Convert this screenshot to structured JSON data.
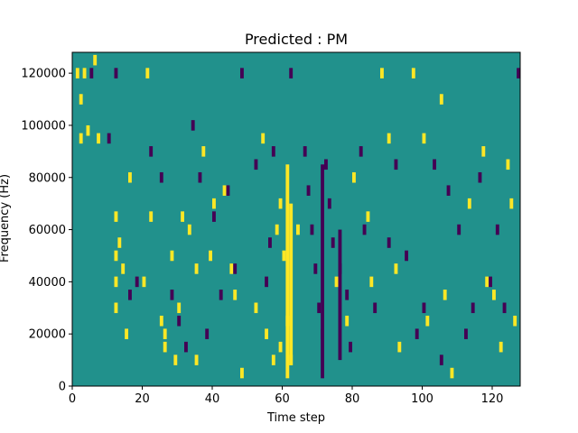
{
  "chart_data": {
    "type": "heatmap",
    "title": "Predicted : PM",
    "xlabel": "Time step",
    "ylabel": "Frequency (Hz)",
    "xlim": [
      0,
      128
    ],
    "ylim": [
      0,
      128000
    ],
    "x_ticks": [
      0,
      20,
      40,
      60,
      80,
      100,
      120
    ],
    "y_ticks": [
      0,
      20000,
      40000,
      60000,
      80000,
      100000,
      120000
    ],
    "colors": {
      "background": "#21918c",
      "positive": "#fde725",
      "negative": "#440154"
    },
    "grid": false,
    "legend": "none",
    "value_levels": {
      "negative": -1,
      "zero": 0,
      "positive": 1
    },
    "cells": [
      [
        1,
        120000,
        1
      ],
      [
        3,
        120000,
        1
      ],
      [
        2,
        110000,
        1
      ],
      [
        4,
        98000,
        1
      ],
      [
        2,
        95000,
        1
      ],
      [
        7,
        95000,
        1
      ],
      [
        6,
        125000,
        1
      ],
      [
        12,
        65000,
        1
      ],
      [
        12,
        50000,
        1
      ],
      [
        12,
        40000,
        1
      ],
      [
        12,
        30000,
        1
      ],
      [
        13,
        55000,
        1
      ],
      [
        14,
        45000,
        1
      ],
      [
        15,
        20000,
        1
      ],
      [
        16,
        80000,
        1
      ],
      [
        20,
        40000,
        1
      ],
      [
        21,
        120000,
        1
      ],
      [
        22,
        65000,
        1
      ],
      [
        25,
        25000,
        1
      ],
      [
        26,
        20000,
        1
      ],
      [
        26,
        15000,
        1
      ],
      [
        28,
        50000,
        1
      ],
      [
        29,
        10000,
        1
      ],
      [
        30,
        30000,
        1
      ],
      [
        31,
        65000,
        1
      ],
      [
        33,
        60000,
        1
      ],
      [
        35,
        10000,
        1
      ],
      [
        35,
        45000,
        1
      ],
      [
        37,
        90000,
        1
      ],
      [
        39,
        50000,
        1
      ],
      [
        40,
        70000,
        1
      ],
      [
        43,
        75000,
        1
      ],
      [
        45,
        45000,
        1
      ],
      [
        46,
        35000,
        1
      ],
      [
        48,
        5000,
        1
      ],
      [
        52,
        30000,
        1
      ],
      [
        54,
        95000,
        1
      ],
      [
        55,
        20000,
        1
      ],
      [
        57,
        10000,
        1
      ],
      [
        58,
        60000,
        1
      ],
      [
        59,
        70000,
        1
      ],
      [
        59,
        15000,
        1
      ],
      [
        60,
        50000,
        1
      ],
      [
        61,
        25000,
        1
      ],
      [
        62,
        10000,
        1
      ],
      [
        64,
        60000,
        1
      ],
      [
        75,
        40000,
        1
      ],
      [
        78,
        25000,
        1
      ],
      [
        80,
        80000,
        1
      ],
      [
        84,
        65000,
        1
      ],
      [
        85,
        40000,
        1
      ],
      [
        88,
        120000,
        1
      ],
      [
        90,
        95000,
        1
      ],
      [
        92,
        45000,
        1
      ],
      [
        93,
        15000,
        1
      ],
      [
        97,
        120000,
        1
      ],
      [
        100,
        95000,
        1
      ],
      [
        101,
        25000,
        1
      ],
      [
        105,
        110000,
        1
      ],
      [
        106,
        35000,
        1
      ],
      [
        108,
        5000,
        1
      ],
      [
        113,
        70000,
        1
      ],
      [
        117,
        90000,
        1
      ],
      [
        118,
        40000,
        1
      ],
      [
        120,
        35000,
        1
      ],
      [
        122,
        15000,
        1
      ],
      [
        124,
        85000,
        1
      ],
      [
        125,
        70000,
        1
      ],
      [
        126,
        25000,
        1
      ],
      [
        5,
        120000,
        -1
      ],
      [
        10,
        95000,
        -1
      ],
      [
        12,
        120000,
        -1
      ],
      [
        16,
        35000,
        -1
      ],
      [
        18,
        40000,
        -1
      ],
      [
        22,
        90000,
        -1
      ],
      [
        25,
        80000,
        -1
      ],
      [
        28,
        35000,
        -1
      ],
      [
        30,
        25000,
        -1
      ],
      [
        32,
        15000,
        -1
      ],
      [
        34,
        100000,
        -1
      ],
      [
        36,
        80000,
        -1
      ],
      [
        38,
        20000,
        -1
      ],
      [
        40,
        65000,
        -1
      ],
      [
        42,
        35000,
        -1
      ],
      [
        44,
        75000,
        -1
      ],
      [
        46,
        45000,
        -1
      ],
      [
        48,
        120000,
        -1
      ],
      [
        52,
        85000,
        -1
      ],
      [
        55,
        40000,
        -1
      ],
      [
        56,
        55000,
        -1
      ],
      [
        57,
        90000,
        -1
      ],
      [
        62,
        120000,
        -1
      ],
      [
        66,
        90000,
        -1
      ],
      [
        67,
        75000,
        -1
      ],
      [
        68,
        60000,
        -1
      ],
      [
        69,
        45000,
        -1
      ],
      [
        70,
        30000,
        -1
      ],
      [
        71,
        20000,
        -1
      ],
      [
        72,
        85000,
        -1
      ],
      [
        73,
        70000,
        -1
      ],
      [
        74,
        55000,
        -1
      ],
      [
        76,
        45000,
        -1
      ],
      [
        78,
        35000,
        -1
      ],
      [
        79,
        15000,
        -1
      ],
      [
        82,
        90000,
        -1
      ],
      [
        83,
        60000,
        -1
      ],
      [
        86,
        30000,
        -1
      ],
      [
        90,
        55000,
        -1
      ],
      [
        92,
        85000,
        -1
      ],
      [
        95,
        50000,
        -1
      ],
      [
        98,
        20000,
        -1
      ],
      [
        100,
        30000,
        -1
      ],
      [
        103,
        85000,
        -1
      ],
      [
        105,
        10000,
        -1
      ],
      [
        107,
        75000,
        -1
      ],
      [
        110,
        60000,
        -1
      ],
      [
        112,
        20000,
        -1
      ],
      [
        114,
        30000,
        -1
      ],
      [
        116,
        80000,
        -1
      ],
      [
        119,
        40000,
        -1
      ],
      [
        121,
        60000,
        -1
      ],
      [
        123,
        30000,
        -1
      ],
      [
        127,
        120000,
        -1
      ]
    ],
    "dense_columns": [
      {
        "x": 61,
        "ranges": [
          [
            3000,
            85000
          ]
        ],
        "value": 1
      },
      {
        "x": 62,
        "ranges": [
          [
            8000,
            70000
          ]
        ],
        "value": 1
      },
      {
        "x": 71,
        "ranges": [
          [
            3000,
            85000
          ]
        ],
        "value": -1
      },
      {
        "x": 76,
        "ranges": [
          [
            10000,
            60000
          ]
        ],
        "value": -1
      }
    ]
  }
}
